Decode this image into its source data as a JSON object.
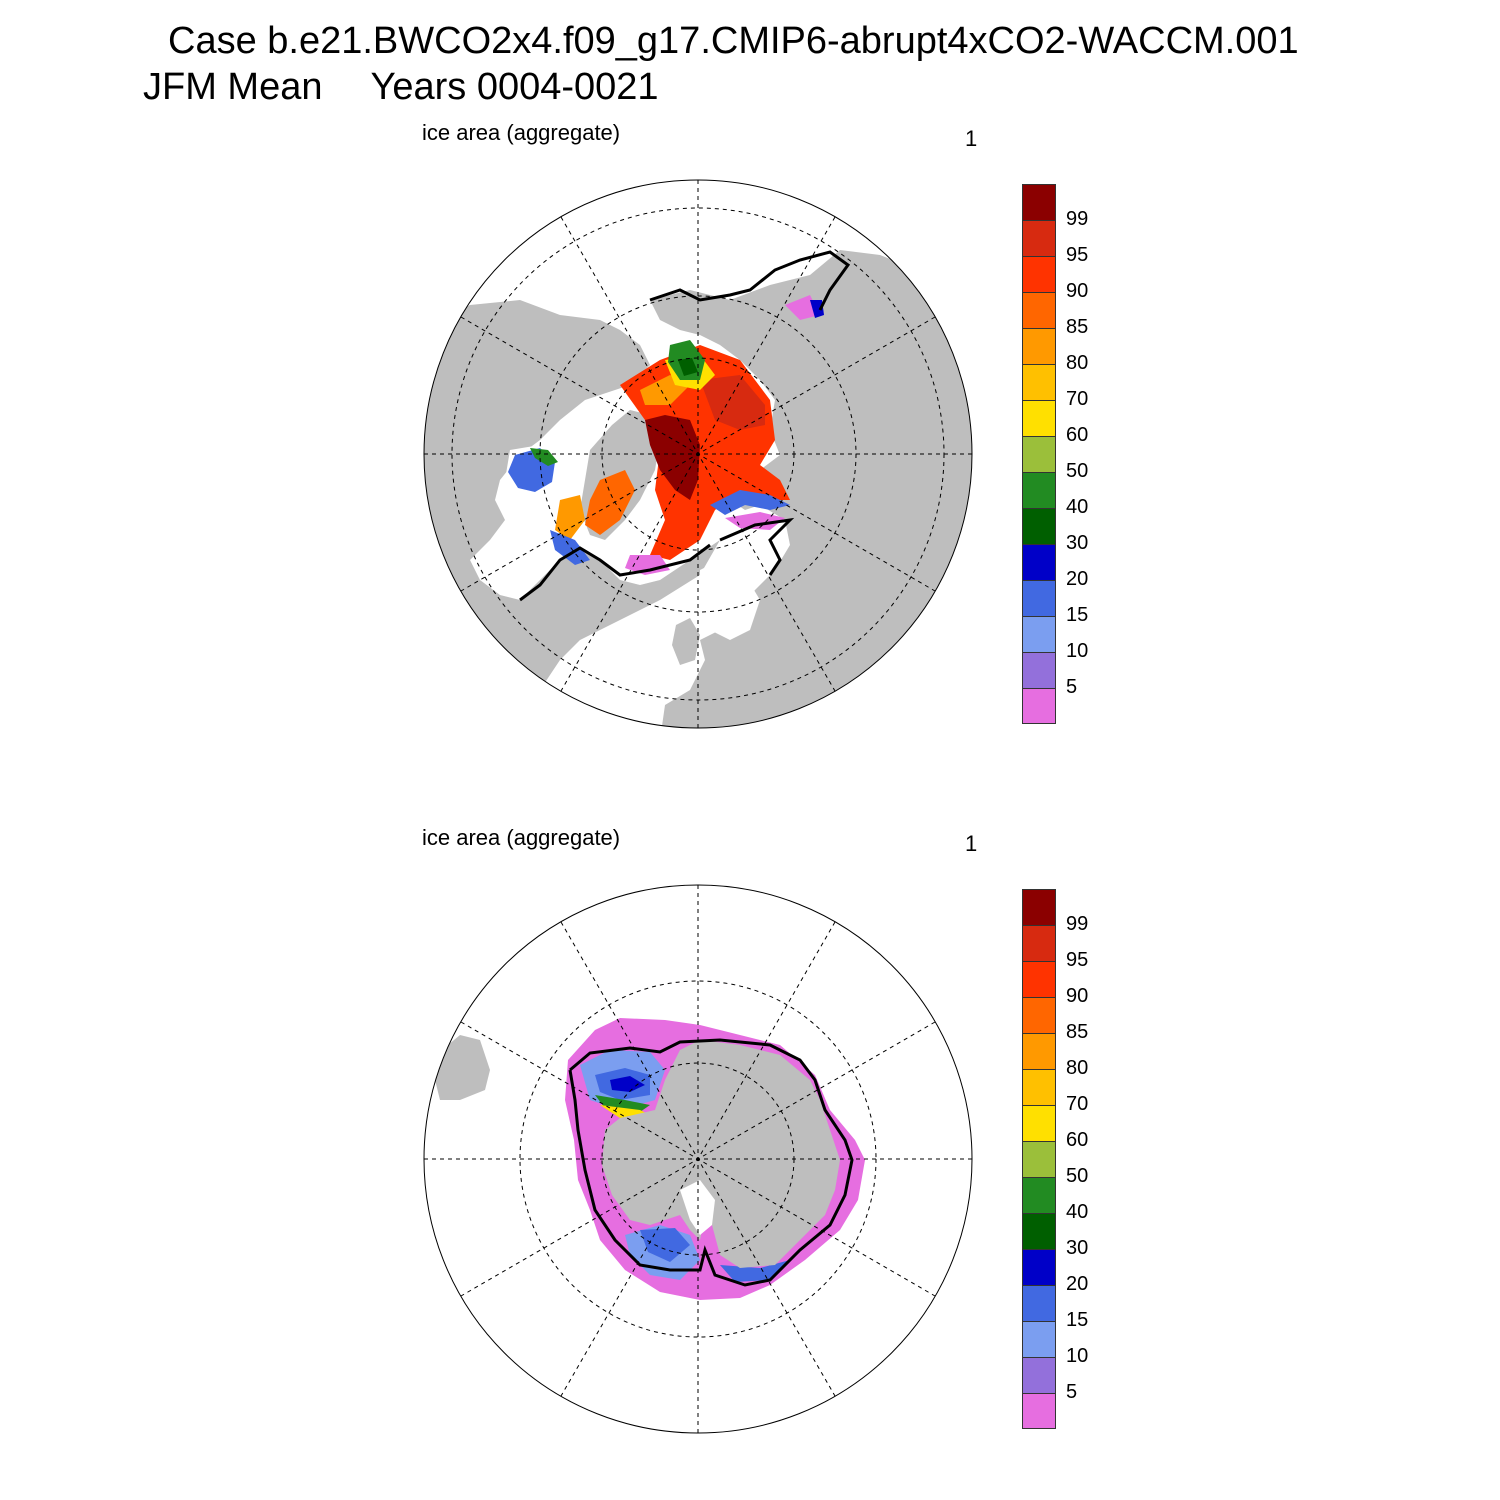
{
  "title": {
    "case": "Case b.e21.BWCO2x4.f09_g17.CMIP6-abrupt4xCO2-WACCM.001",
    "season": "JFM Mean",
    "years": "Years 0004-0021"
  },
  "panels": [
    {
      "label": "ice area  (aggregate)",
      "number": "1",
      "hemisphere": "north"
    },
    {
      "label": "ice area  (aggregate)",
      "number": "1",
      "hemisphere": "south"
    }
  ],
  "colorbar": {
    "labels": [
      "99",
      "95",
      "90",
      "85",
      "80",
      "70",
      "60",
      "50",
      "40",
      "30",
      "20",
      "15",
      "10",
      "5"
    ],
    "colors": [
      "#8b0000",
      "#d72a10",
      "#ff3300",
      "#ff6600",
      "#ff9900",
      "#ffc000",
      "#ffe000",
      "#9bbf3a",
      "#228b22",
      "#005f00",
      "#0000c8",
      "#4169e1",
      "#7b9ef0",
      "#9370db",
      "#e66ee0"
    ]
  },
  "map_colors": {
    "land": "#bebebe",
    "ocean": "#ffffff",
    "ice_edge": "#000000"
  }
}
